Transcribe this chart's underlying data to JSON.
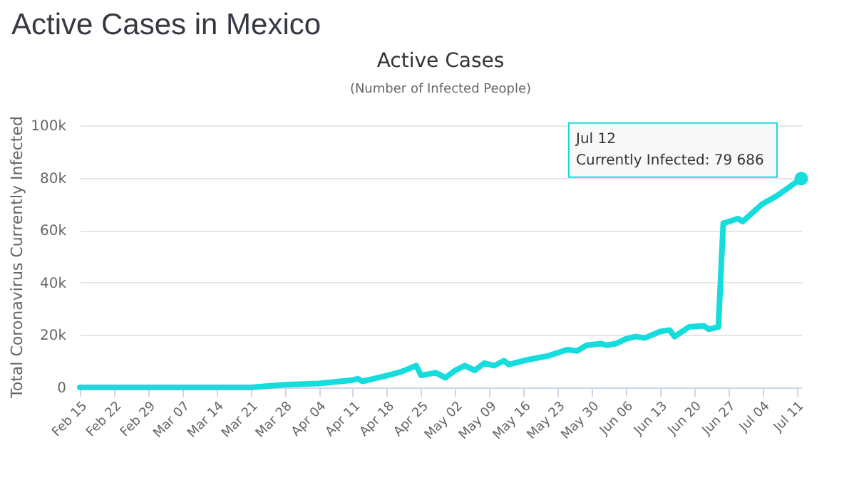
{
  "chart_data": {
    "type": "line",
    "title": "Active Cases in Mexico",
    "subtitle": "Active Cases",
    "annotations": [
      "(Number of Infected People)",
      {
        "text": "Jul 12\nCurrently Infected: 79 686",
        "x": "--07-12",
        "y": 79686
      }
    ],
    "ylabel": "Total Coronavirus Currently Infected",
    "x": [
      "--02-15",
      "--02-29",
      "--03-14",
      "--03-21",
      "--03-28",
      "--04-04",
      "--04-11",
      "--04-12",
      "--04-13",
      "--04-18",
      "--04-21",
      "--04-24",
      "--04-25",
      "--04-28",
      "--04-30",
      "--05-02",
      "--05-04",
      "--05-06",
      "--05-08",
      "--05-10",
      "--05-12",
      "--05-13",
      "--05-17",
      "--05-21",
      "--05-25",
      "--05-27",
      "--05-29",
      "--06-01",
      "--06-02",
      "--06-04",
      "--06-06",
      "--06-08",
      "--06-10",
      "--06-13",
      "--06-15",
      "--06-16",
      "--06-19",
      "--06-22",
      "--06-23",
      "--06-25",
      "--06-26",
      "--06-29",
      "--06-30",
      "--07-04",
      "--07-07",
      "--07-12"
    ],
    "series": [
      {
        "color": "#16dcdc",
        "values": [
          0,
          0,
          0,
          0,
          1000,
          1500,
          2800,
          3300,
          2300,
          4500,
          6000,
          8300,
          4600,
          5600,
          3700,
          6500,
          8300,
          6500,
          9300,
          8300,
          10200,
          8700,
          10600,
          12000,
          14400,
          13900,
          16100,
          16700,
          16100,
          16700,
          18500,
          19400,
          18900,
          21300,
          21900,
          19400,
          23100,
          23500,
          22200,
          23100,
          62600,
          64400,
          63300,
          70000,
          73100,
          79686
        ]
      }
    ],
    "xlim": [
      "--02-15",
      "--07-12"
    ],
    "xticks": [
      {
        "value": "--02-15",
        "label": "Feb 15"
      },
      {
        "value": "--02-22",
        "label": "Feb 22"
      },
      {
        "value": "--02-29",
        "label": "Feb 29"
      },
      {
        "value": "--03-07",
        "label": "Mar 07"
      },
      {
        "value": "--03-14",
        "label": "Mar 14"
      },
      {
        "value": "--03-21",
        "label": "Mar 21"
      },
      {
        "value": "--03-28",
        "label": "Mar 28"
      },
      {
        "value": "--04-04",
        "label": "Apr 04"
      },
      {
        "value": "--04-11",
        "label": "Apr 11"
      },
      {
        "value": "--04-18",
        "label": "Apr 18"
      },
      {
        "value": "--04-25",
        "label": "Apr 25"
      },
      {
        "value": "--05-02",
        "label": "May 02"
      },
      {
        "value": "--05-09",
        "label": "May 09"
      },
      {
        "value": "--05-16",
        "label": "May 16"
      },
      {
        "value": "--05-23",
        "label": "May 23"
      },
      {
        "value": "--05-30",
        "label": "May 30"
      },
      {
        "value": "--06-06",
        "label": "Jun 06"
      },
      {
        "value": "--06-13",
        "label": "Jun 13"
      },
      {
        "value": "--06-20",
        "label": "Jun 20"
      },
      {
        "value": "--06-27",
        "label": "Jun 27"
      },
      {
        "value": "--07-04",
        "label": "Jul 04"
      },
      {
        "value": "--07-11",
        "label": "Jul 11"
      }
    ],
    "ylim": [
      0,
      100000
    ],
    "yticks": [
      0,
      {
        "value": 20000,
        "label": "20k"
      },
      {
        "value": 40000,
        "label": "40k"
      },
      {
        "value": 60000,
        "label": "60k"
      },
      {
        "value": 80000,
        "label": "80k"
      },
      {
        "value": 100000,
        "label": "100k"
      }
    ],
    "grid": "y",
    "legend": false,
    "marker": "none",
    "line_style": "solid"
  }
}
